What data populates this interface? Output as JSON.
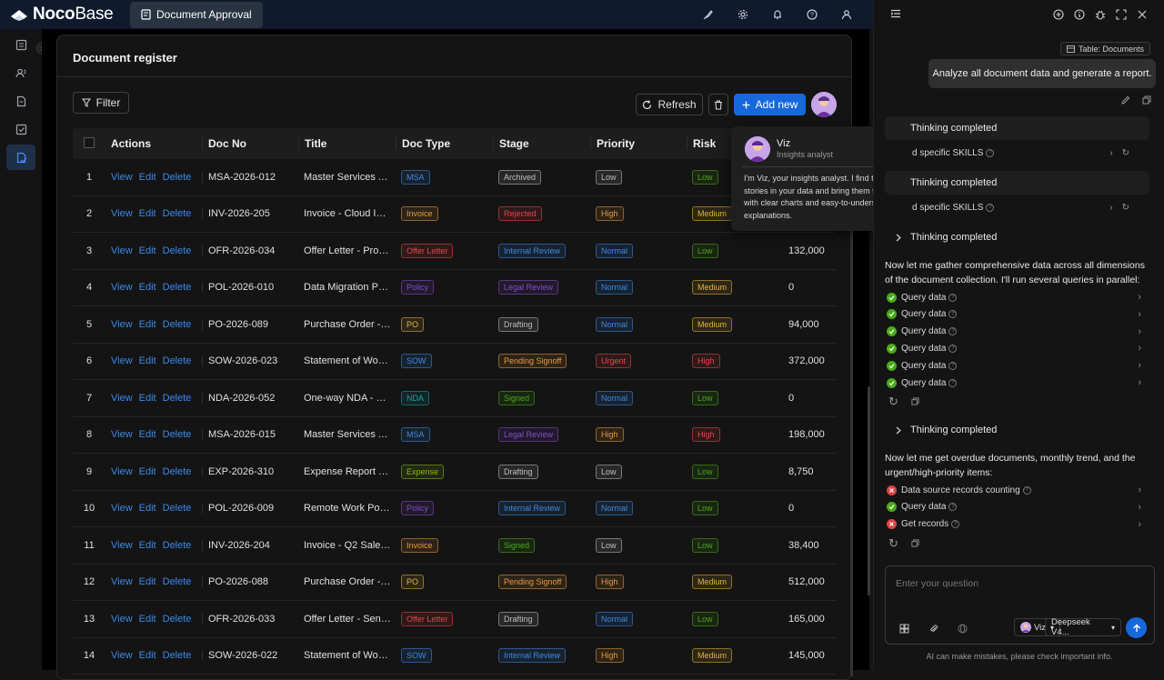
{
  "app": {
    "logo_bold": "Noco",
    "logo_light": "Base",
    "active_tab": "Document Approval"
  },
  "topbar_icons": [
    "brush-icon",
    "gear-icon",
    "bell-icon",
    "help-icon",
    "user-icon"
  ],
  "card": {
    "title": "Document register",
    "filter_label": "Filter",
    "refresh_label": "Refresh",
    "add_label": "Add new"
  },
  "table": {
    "columns": [
      "Actions",
      "Doc No",
      "Title",
      "Doc Type",
      "Stage",
      "Priority",
      "Risk"
    ],
    "action_labels": {
      "view": "View",
      "edit": "Edit",
      "delete": "Delete"
    },
    "rows": [
      {
        "n": "1",
        "doc": "MSA-2026-012",
        "title": "Master Services A...",
        "type": "MSA",
        "stage": "Archived",
        "priority": "Low",
        "risk": "Low",
        "amount": ""
      },
      {
        "n": "2",
        "doc": "INV-2026-205",
        "title": "Invoice - Cloud Infr...",
        "type": "Invoice",
        "stage": "Rejected",
        "priority": "High",
        "risk": "Medium",
        "amount": ""
      },
      {
        "n": "3",
        "doc": "OFR-2026-034",
        "title": "Offer Letter - Prod...",
        "type": "Offer Letter",
        "stage": "Internal Review",
        "priority": "Normal",
        "risk": "Low",
        "amount": "132,000"
      },
      {
        "n": "4",
        "doc": "POL-2026-010",
        "title": "Data Migration Ph...",
        "type": "Policy",
        "stage": "Legal Review",
        "priority": "Normal",
        "risk": "Medium",
        "amount": "0"
      },
      {
        "n": "5",
        "doc": "PO-2026-089",
        "title": "Purchase Order - ...",
        "type": "PO",
        "stage": "Drafting",
        "priority": "Normal",
        "risk": "Medium",
        "amount": "94,000"
      },
      {
        "n": "6",
        "doc": "SOW-2026-023",
        "title": "Statement of Work...",
        "type": "SOW",
        "stage": "Pending Signoff",
        "priority": "Urgent",
        "risk": "High",
        "amount": "372,000"
      },
      {
        "n": "7",
        "doc": "NDA-2026-052",
        "title": "One-way NDA - De...",
        "type": "NDA",
        "stage": "Signed",
        "priority": "Normal",
        "risk": "Low",
        "amount": "0"
      },
      {
        "n": "8",
        "doc": "MSA-2026-015",
        "title": "Master Services A...",
        "type": "MSA",
        "stage": "Legal Review",
        "priority": "High",
        "risk": "High",
        "amount": "198,000"
      },
      {
        "n": "9",
        "doc": "EXP-2026-310",
        "title": "Expense Report - ...",
        "type": "Expense",
        "stage": "Drafting",
        "priority": "Low",
        "risk": "Low",
        "amount": "8,750"
      },
      {
        "n": "10",
        "doc": "POL-2026-009",
        "title": "Remote Work Polic...",
        "type": "Policy",
        "stage": "Internal Review",
        "priority": "Normal",
        "risk": "Low",
        "amount": "0"
      },
      {
        "n": "11",
        "doc": "INV-2026-204",
        "title": "Invoice - Q2 Sales ...",
        "type": "Invoice",
        "stage": "Signed",
        "priority": "Low",
        "risk": "Low",
        "amount": "38,400"
      },
      {
        "n": "12",
        "doc": "PO-2026-088",
        "title": "Purchase Order - ...",
        "type": "PO",
        "stage": "Pending Signoff",
        "priority": "High",
        "risk": "Medium",
        "amount": "512,000"
      },
      {
        "n": "13",
        "doc": "OFR-2026-033",
        "title": "Offer Letter - Seni...",
        "type": "Offer Letter",
        "stage": "Drafting",
        "priority": "Normal",
        "risk": "Low",
        "amount": "165,000"
      },
      {
        "n": "14",
        "doc": "SOW-2026-022",
        "title": "Statement of Work...",
        "type": "SOW",
        "stage": "Internal Review",
        "priority": "High",
        "risk": "Medium",
        "amount": "145,000"
      }
    ]
  },
  "tag_colors": {
    "MSA": "#3c89e8",
    "Invoice": "#e89a3c",
    "Offer Letter": "#e84749",
    "Policy": "#854eca",
    "PO": "#e8b339",
    "SOW": "#3c89e8",
    "NDA": "#13a8a8",
    "Expense": "#8bbb11",
    "Archived": "#bfbfbf",
    "Rejected": "#e84749",
    "Internal Review": "#3c89e8",
    "Legal Review": "#854eca",
    "Drafting": "#bfbfbf",
    "Pending Signoff": "#e89a3c",
    "Signed": "#49aa19",
    "Low": "#bfbfbf",
    "High": "#e89a3c",
    "Normal": "#3c89e8",
    "Urgent": "#e84749",
    "risk_Low": "#49aa19",
    "risk_Medium": "#e8b339",
    "risk_High": "#e84749"
  },
  "popover": {
    "name": "Viz",
    "role": "Insights analyst",
    "description": "I'm Viz, your insights analyst. I find the stories in your data and bring them to life with clear charts and easy-to-understand explanations."
  },
  "assistant": {
    "context_chip": "Table: Documents",
    "user_message": "Analyze all document data and generate a report.",
    "thinking_label": "Thinking completed",
    "skills_label": "d specific SKILLS",
    "paragraph_1": "Now let me gather comprehensive data across all dimensions of the document collection. I'll run several queries in parallel:",
    "steps_1": [
      "Query data",
      "Query data",
      "Query data",
      "Query data",
      "Query data",
      "Query data"
    ],
    "paragraph_2": "Now let me get overdue documents, monthly trend, and the urgent/high-priority items:",
    "steps_2": [
      {
        "label": "Data source records counting",
        "status": "error"
      },
      {
        "label": "Query data",
        "status": "ok"
      },
      {
        "label": "Get records",
        "status": "error"
      }
    ],
    "input_placeholder": "Enter your question",
    "agent_chip": "Viz",
    "model_chip": "Deepseek V4...",
    "disclaimer": "AI can make mistakes, please check important info."
  }
}
